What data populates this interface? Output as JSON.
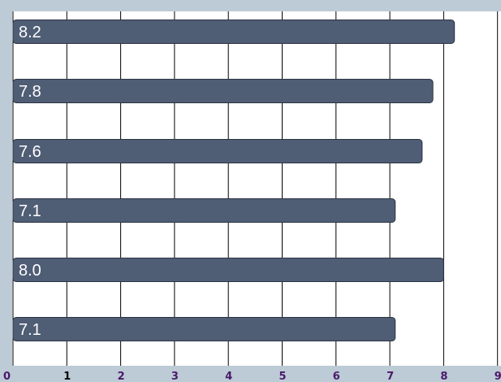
{
  "chart_data": {
    "type": "bar",
    "orientation": "horizontal",
    "values": [
      8.2,
      7.8,
      7.6,
      7.1,
      8.0,
      7.1
    ],
    "data_labels": [
      "8.2",
      "7.8",
      "7.6",
      "7.1",
      "8.0",
      "7.1"
    ],
    "xlim": [
      0,
      9
    ],
    "x_ticks": [
      "0",
      "1",
      "2",
      "3",
      "4",
      "5",
      "6",
      "7",
      "8",
      "9"
    ],
    "grid": true,
    "colors": {
      "bar": "#4f5d75",
      "bar_border": "#2b3443",
      "plot_background": "#ffffff",
      "frame_background": "#bccbd6",
      "tick_label": "#4a1a6a"
    }
  }
}
